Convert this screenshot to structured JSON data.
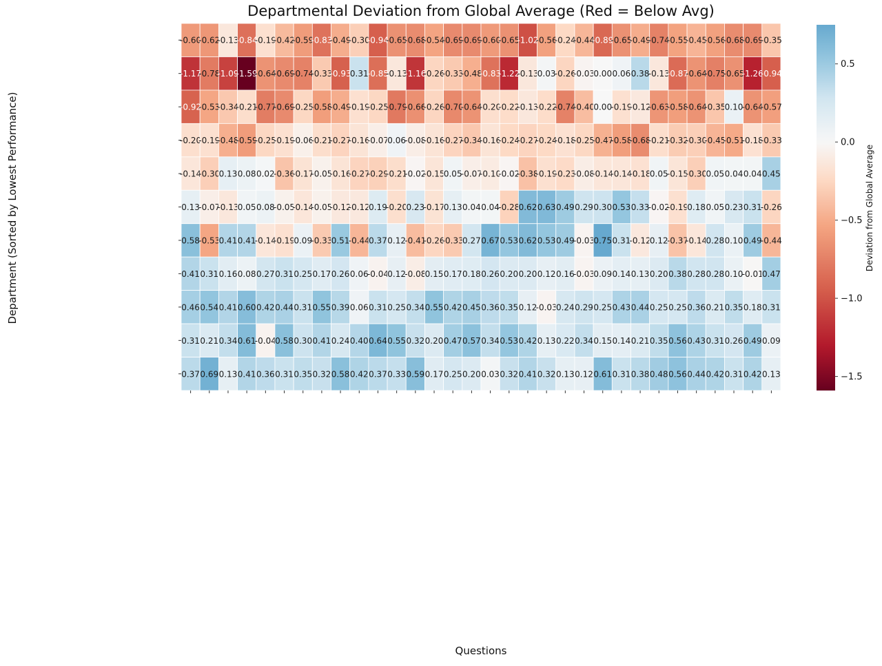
{
  "chart_data": {
    "type": "heatmap",
    "title": "Departmental Deviation from Global Average (Red = Below Avg)",
    "xlabel": "Questions",
    "ylabel": "Department (Sorted by Lowest Performance)",
    "colorbar_label": "Deviation from Global Average",
    "colorbar_ticks": [
      0.5,
      0.0,
      -0.5,
      -1.0,
      -1.5
    ],
    "colorbar_tick_labels": [
      "0.5",
      "0.0",
      "−0.5",
      "−1.0",
      "−1.5"
    ],
    "vmin": -1.59,
    "vmax": 0.75,
    "colormap": "RdBu",
    "colors": {
      "low": "#67001f",
      "mid": "#f7f7f7",
      "high": "#67a9cf",
      "text_dark": "#1a1a1a",
      "text_light": "#ffffff"
    },
    "row_labels": [
      "",
      "",
      "",
      "",
      "",
      "",
      "",
      "",
      "",
      "",
      ""
    ],
    "column_labels": [
      "",
      "",
      "",
      "",
      "",
      "",
      "",
      "",
      "",
      "",
      "",
      "",
      "",
      "",
      "",
      "",
      "",
      "",
      "",
      "",
      "",
      "",
      "",
      "",
      "",
      "",
      "",
      "",
      "",
      "",
      "",
      ""
    ],
    "values": [
      [
        -0.6,
        -0.62,
        -0.13,
        -0.84,
        -0.19,
        -0.42,
        -0.59,
        -0.83,
        -0.49,
        -0.3,
        -0.94,
        -0.65,
        -0.68,
        -0.54,
        -0.69,
        -0.69,
        -0.6,
        -0.65,
        -1.02,
        -0.56,
        -0.24,
        -0.44,
        -0.89,
        -0.65,
        -0.49,
        -0.74,
        -0.55,
        -0.45,
        -0.56,
        -0.68,
        -0.69,
        -0.35
      ],
      [
        -1.17,
        -0.78,
        -1.09,
        -1.59,
        -0.64,
        -0.69,
        -0.74,
        -0.33,
        -0.93,
        0.31,
        -0.85,
        -0.13,
        -1.16,
        -0.26,
        -0.33,
        -0.48,
        -0.83,
        -1.22,
        -0.13,
        0.03,
        -0.26,
        -0.03,
        0.0,
        0.06,
        0.38,
        -0.13,
        -0.87,
        -0.64,
        -0.75,
        -0.65,
        -1.26,
        -0.94
      ],
      [
        -0.92,
        -0.53,
        -0.34,
        -0.21,
        -0.77,
        -0.69,
        -0.25,
        -0.58,
        -0.49,
        -0.19,
        -0.25,
        -0.79,
        -0.66,
        -0.26,
        -0.7,
        -0.64,
        -0.2,
        -0.22,
        -0.13,
        -0.22,
        -0.74,
        -0.4,
        0.0,
        -0.19,
        -0.12,
        -0.63,
        -0.58,
        -0.64,
        -0.35,
        0.1,
        -0.64,
        -0.57
      ],
      [
        -0.2,
        -0.19,
        -0.48,
        -0.59,
        -0.25,
        -0.19,
        -0.06,
        -0.21,
        -0.27,
        -0.16,
        -0.07,
        0.06,
        -0.08,
        -0.16,
        -0.27,
        -0.34,
        -0.16,
        -0.24,
        -0.27,
        -0.24,
        -0.18,
        -0.25,
        -0.47,
        -0.58,
        -0.68,
        -0.21,
        -0.32,
        -0.3,
        -0.45,
        -0.51,
        -0.18,
        -0.33
      ],
      [
        -0.14,
        -0.3,
        0.13,
        0.08,
        0.02,
        -0.36,
        -0.17,
        -0.05,
        -0.16,
        -0.27,
        -0.29,
        -0.21,
        -0.02,
        -0.15,
        0.05,
        -0.07,
        -0.1,
        -0.02,
        -0.38,
        -0.19,
        -0.23,
        -0.08,
        -0.14,
        -0.14,
        -0.18,
        0.05,
        -0.15,
        -0.3,
        0.05,
        0.04,
        0.04,
        0.45
      ],
      [
        0.13,
        -0.07,
        -0.13,
        0.05,
        0.08,
        -0.05,
        -0.14,
        -0.05,
        -0.12,
        -0.12,
        0.19,
        -0.2,
        0.23,
        -0.17,
        0.13,
        0.04,
        0.04,
        -0.28,
        0.62,
        0.63,
        0.49,
        0.29,
        0.3,
        0.53,
        0.33,
        -0.02,
        -0.19,
        0.18,
        0.05,
        0.23,
        0.31,
        -0.26
      ],
      [
        0.58,
        -0.53,
        0.41,
        0.41,
        -0.14,
        -0.19,
        0.09,
        -0.33,
        0.51,
        -0.44,
        0.37,
        0.12,
        -0.41,
        -0.26,
        -0.33,
        0.27,
        0.67,
        0.53,
        0.62,
        0.53,
        0.49,
        -0.03,
        0.75,
        0.31,
        -0.12,
        0.12,
        -0.37,
        -0.14,
        0.28,
        0.1,
        0.49,
        -0.44
      ],
      [
        0.41,
        0.31,
        0.16,
        0.08,
        0.27,
        0.31,
        0.25,
        0.17,
        0.26,
        0.06,
        -0.04,
        0.12,
        -0.08,
        0.15,
        0.17,
        0.18,
        0.26,
        0.2,
        0.2,
        0.12,
        0.16,
        -0.03,
        0.09,
        0.14,
        0.13,
        0.2,
        0.38,
        0.28,
        0.28,
        0.1,
        -0.01,
        0.47
      ],
      [
        0.46,
        0.54,
        0.41,
        0.6,
        0.42,
        0.44,
        0.31,
        0.55,
        0.39,
        0.06,
        0.31,
        0.25,
        0.34,
        0.55,
        0.42,
        0.45,
        0.36,
        0.35,
        0.12,
        -0.03,
        0.24,
        0.29,
        0.25,
        0.43,
        0.44,
        0.25,
        0.25,
        0.36,
        0.21,
        0.35,
        0.18,
        0.31
      ],
      [
        0.31,
        0.21,
        0.34,
        0.61,
        -0.04,
        0.58,
        0.3,
        0.41,
        0.24,
        0.4,
        0.64,
        0.55,
        0.32,
        0.2,
        0.47,
        0.57,
        0.34,
        0.53,
        0.42,
        0.13,
        0.22,
        0.34,
        0.15,
        0.14,
        0.21,
        0.35,
        0.56,
        0.43,
        0.31,
        0.26,
        0.49,
        0.09
      ],
      [
        0.37,
        0.69,
        0.13,
        0.41,
        0.36,
        0.31,
        0.35,
        0.32,
        0.58,
        0.42,
        0.37,
        0.33,
        0.59,
        0.17,
        0.25,
        0.2,
        0.03,
        0.32,
        0.41,
        0.32,
        0.13,
        0.12,
        0.61,
        0.31,
        0.38,
        0.48,
        0.56,
        0.44,
        0.42,
        0.31,
        0.42,
        0.13
      ]
    ]
  }
}
